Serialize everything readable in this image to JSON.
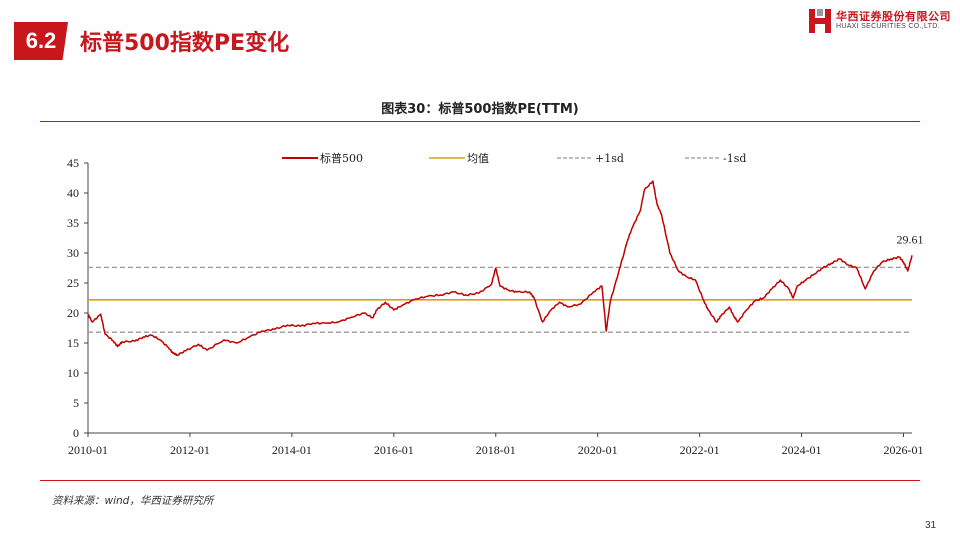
{
  "header": {
    "section_number": "6.2",
    "title": "标普500指数PE变化",
    "logo_cn": "华西证券股份有限公司",
    "logo_en": "HUAXI SECURITIES CO.,LTD."
  },
  "footer": {
    "source": "资料来源：wind，华西证券研究所",
    "page_number": "31"
  },
  "colors": {
    "brand_red": "#c8161d",
    "series_line": "#c00000",
    "mean_line": "#d4a017",
    "sd_line": "#999999"
  },
  "chart_data": {
    "type": "line",
    "title": "图表30：标普500指数PE(TTM)",
    "xlabel": "",
    "ylabel": "",
    "x_ticks": [
      "2010-01",
      "2012-01",
      "2014-01",
      "2016-01",
      "2018-01",
      "2020-01",
      "2022-01",
      "2024-01",
      "2026-01"
    ],
    "x_range": [
      "2010-01-01",
      "2026-03-01"
    ],
    "ylim": [
      0,
      45
    ],
    "y_ticks": [
      0,
      5,
      10,
      15,
      20,
      25,
      30,
      35,
      40,
      45
    ],
    "grid": false,
    "legend_position": "top",
    "legend": [
      "标普500",
      "均值",
      "+1sd",
      "-1sd"
    ],
    "series": [
      {
        "name": "标普500",
        "points": [
          [
            "2010-01",
            19.8
          ],
          [
            "2010-02",
            18.5
          ],
          [
            "2010-04",
            19.8
          ],
          [
            "2010-05",
            16.5
          ],
          [
            "2010-07",
            15.3
          ],
          [
            "2010-08",
            14.4
          ],
          [
            "2010-09",
            15.2
          ],
          [
            "2010-12",
            15.3
          ],
          [
            "2011-02",
            16.0
          ],
          [
            "2011-04",
            16.3
          ],
          [
            "2011-06",
            15.5
          ],
          [
            "2011-08",
            14.2
          ],
          [
            "2011-09",
            13.3
          ],
          [
            "2011-10",
            13.0
          ],
          [
            "2011-12",
            13.7
          ],
          [
            "2012-03",
            14.8
          ],
          [
            "2012-05",
            13.8
          ],
          [
            "2012-09",
            15.5
          ],
          [
            "2012-12",
            15.0
          ],
          [
            "2013-03",
            16.0
          ],
          [
            "2013-06",
            17.0
          ],
          [
            "2013-09",
            17.3
          ],
          [
            "2013-12",
            18.0
          ],
          [
            "2014-03",
            17.8
          ],
          [
            "2014-06",
            18.3
          ],
          [
            "2014-09",
            18.3
          ],
          [
            "2014-12",
            18.5
          ],
          [
            "2015-03",
            19.3
          ],
          [
            "2015-06",
            20.0
          ],
          [
            "2015-08",
            19.2
          ],
          [
            "2015-09",
            20.5
          ],
          [
            "2015-11",
            21.8
          ],
          [
            "2016-01",
            20.5
          ],
          [
            "2016-03",
            21.3
          ],
          [
            "2016-06",
            22.3
          ],
          [
            "2016-09",
            22.8
          ],
          [
            "2016-12",
            23.0
          ],
          [
            "2017-03",
            23.5
          ],
          [
            "2017-06",
            23.0
          ],
          [
            "2017-09",
            23.3
          ],
          [
            "2017-12",
            24.8
          ],
          [
            "2018-01",
            27.5
          ],
          [
            "2018-02",
            24.5
          ],
          [
            "2018-04",
            23.8
          ],
          [
            "2018-06",
            23.5
          ],
          [
            "2018-09",
            23.5
          ],
          [
            "2018-10",
            22.5
          ],
          [
            "2018-12",
            18.5
          ],
          [
            "2019-02",
            20.5
          ],
          [
            "2019-04",
            21.8
          ],
          [
            "2019-06",
            21.0
          ],
          [
            "2019-09",
            21.5
          ],
          [
            "2019-12",
            23.5
          ],
          [
            "2020-02",
            24.5
          ],
          [
            "2020-03",
            17.0
          ],
          [
            "2020-04",
            22.0
          ],
          [
            "2020-06",
            27.0
          ],
          [
            "2020-08",
            32.0
          ],
          [
            "2020-09",
            34.0
          ],
          [
            "2020-11",
            37.0
          ],
          [
            "2020-12",
            40.5
          ],
          [
            "2021-02",
            42.0
          ],
          [
            "2021-03",
            38.0
          ],
          [
            "2021-04",
            36.5
          ],
          [
            "2021-06",
            30.0
          ],
          [
            "2021-08",
            27.0
          ],
          [
            "2021-10",
            26.0
          ],
          [
            "2021-12",
            25.5
          ],
          [
            "2022-02",
            22.0
          ],
          [
            "2022-03",
            20.5
          ],
          [
            "2022-05",
            18.5
          ],
          [
            "2022-06",
            19.5
          ],
          [
            "2022-08",
            21.0
          ],
          [
            "2022-09",
            19.5
          ],
          [
            "2022-10",
            18.5
          ],
          [
            "2022-12",
            20.5
          ],
          [
            "2023-02",
            22.0
          ],
          [
            "2023-04",
            22.5
          ],
          [
            "2023-06",
            24.0
          ],
          [
            "2023-08",
            25.5
          ],
          [
            "2023-10",
            24.0
          ],
          [
            "2023-11",
            22.5
          ],
          [
            "2023-12",
            24.5
          ],
          [
            "2024-02",
            25.5
          ],
          [
            "2024-04",
            26.5
          ],
          [
            "2024-06",
            27.5
          ],
          [
            "2024-08",
            28.3
          ],
          [
            "2024-10",
            29.0
          ],
          [
            "2024-12",
            28.0
          ],
          [
            "2025-02",
            27.5
          ],
          [
            "2025-04",
            24.0
          ],
          [
            "2025-06",
            27.0
          ],
          [
            "2025-08",
            28.5
          ],
          [
            "2025-10",
            29.0
          ],
          [
            "2025-12",
            29.3
          ],
          [
            "2026-01",
            28.5
          ],
          [
            "2026-02",
            27.0
          ],
          [
            "2026-03",
            29.61
          ]
        ]
      },
      {
        "name": "均值",
        "value": 22.2
      },
      {
        "name": "+1sd",
        "value": 27.6
      },
      {
        "name": "-1sd",
        "value": 16.8
      }
    ],
    "annotations": [
      {
        "label": "29.61",
        "x": "2026-03",
        "y": 29.61
      }
    ]
  }
}
